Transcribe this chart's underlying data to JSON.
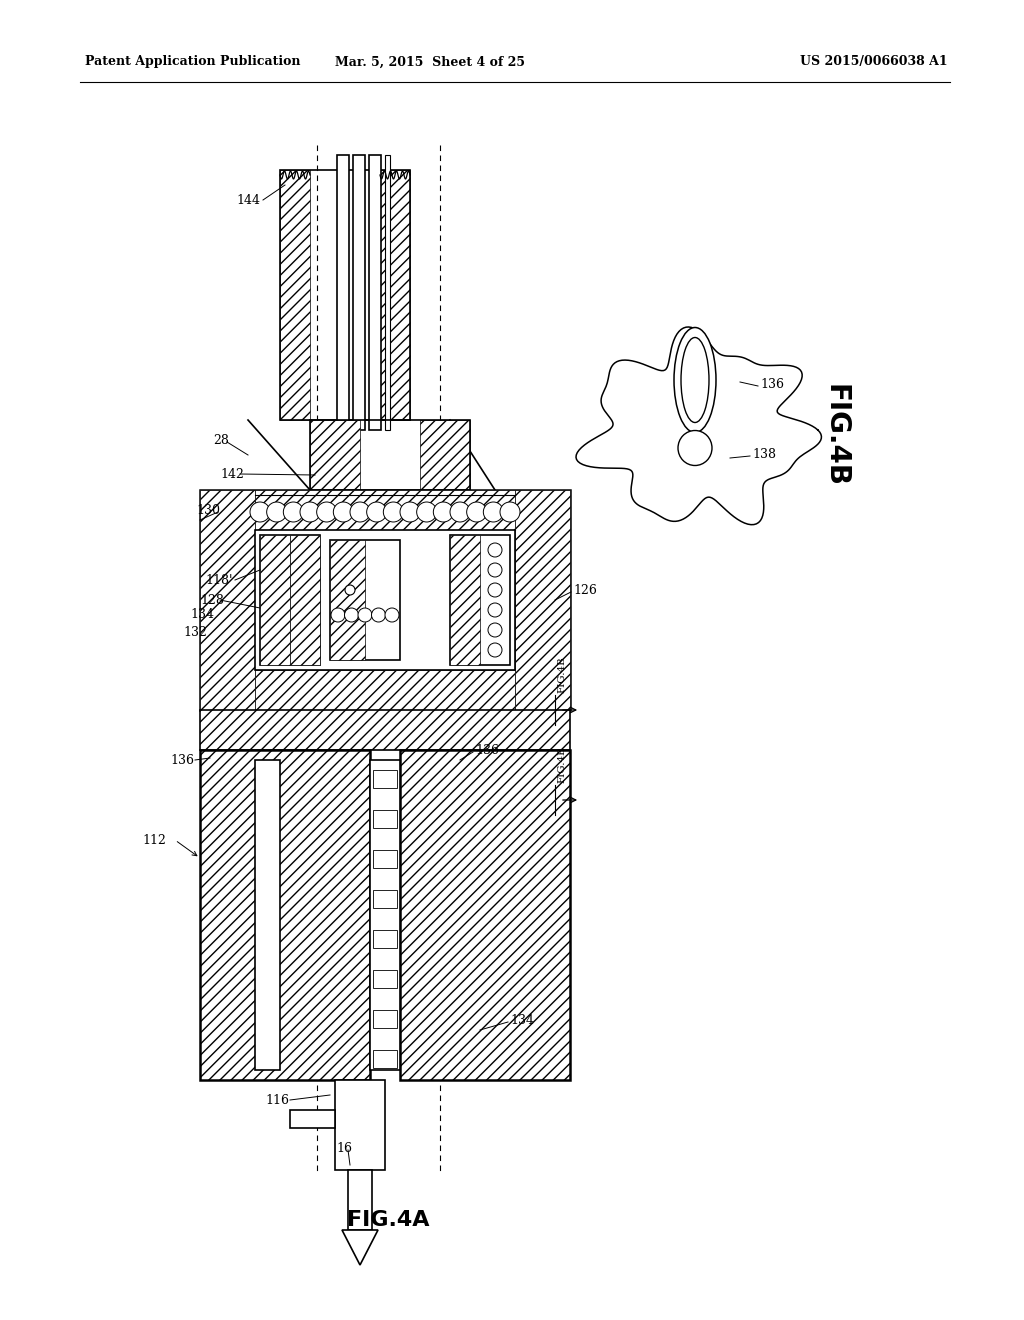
{
  "bg_color": "#ffffff",
  "header_left": "Patent Application Publication",
  "header_center": "Mar. 5, 2015  Sheet 4 of 25",
  "header_right": "US 2015/0066038 A1",
  "fig4a_label": "FIG.4A",
  "fig4b_label": "FIG.4B",
  "lw_main": 1.2,
  "lw_thick": 1.8,
  "lw_thin": 0.7
}
